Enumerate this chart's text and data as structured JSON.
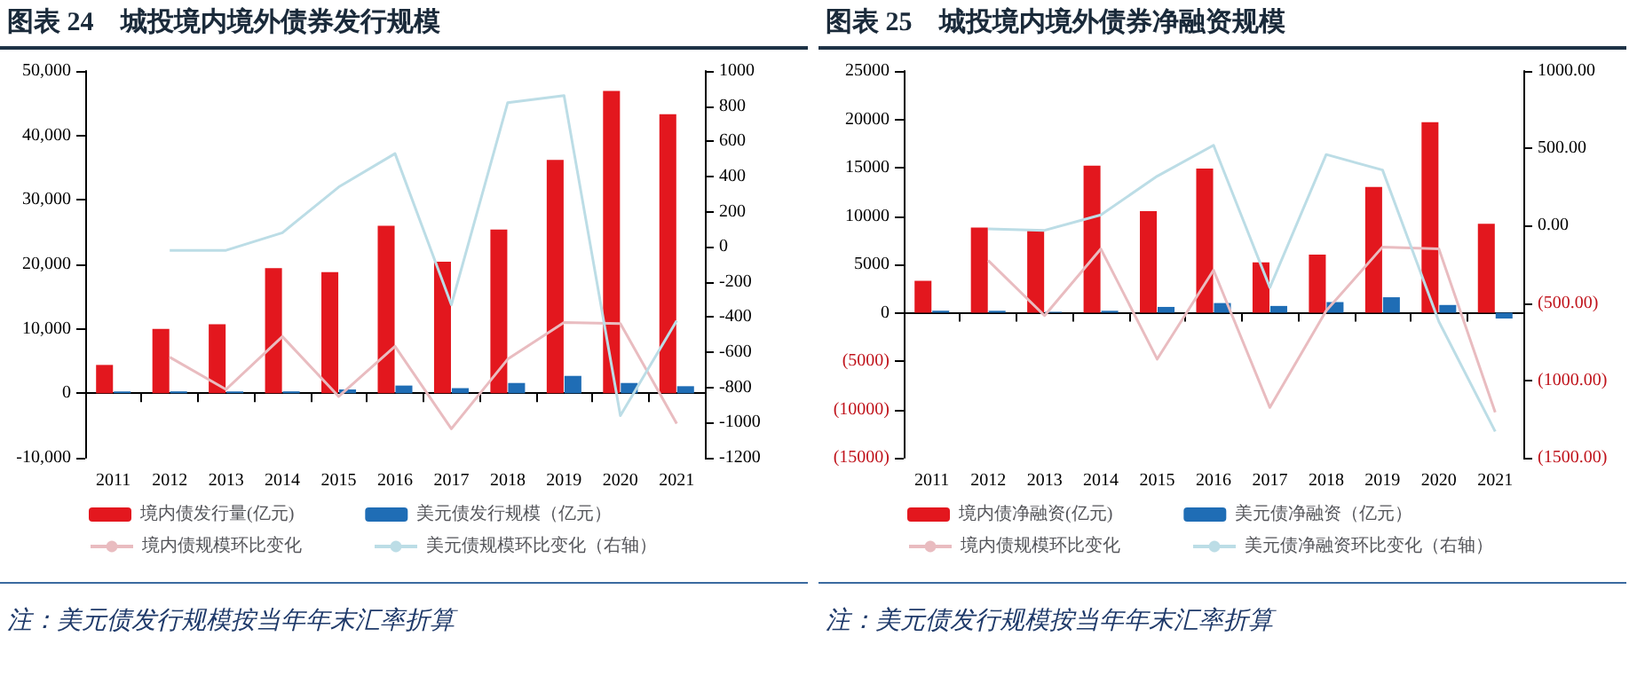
{
  "chart_data": [
    {
      "type": "bar",
      "title": "图表 24　城投境内境外债券发行规模",
      "categories": [
        "2011",
        "2012",
        "2013",
        "2014",
        "2015",
        "2016",
        "2017",
        "2018",
        "2019",
        "2020",
        "2021"
      ],
      "series": [
        {
          "name": "境内债发行量(亿元)",
          "color": "#e3171e",
          "values": [
            4400,
            10000,
            10700,
            19400,
            18800,
            26000,
            20400,
            25400,
            36200,
            46900,
            43300
          ]
        },
        {
          "name": "美元债发行规模（亿元）",
          "color": "#1f6db5",
          "values": [
            300,
            300,
            300,
            300,
            600,
            1200,
            800,
            1600,
            2700,
            1600,
            1100
          ]
        },
        {
          "name": "境内债规模环比变化",
          "type": "line",
          "color": "#e9bcc0",
          "values": [
            null,
            5600,
            600,
            8800,
            -500,
            7300,
            -5500,
            5300,
            11000,
            10800,
            -4700
          ]
        },
        {
          "name": "美元债规模环比变化（右轴）",
          "type": "line",
          "axis": "y2",
          "color": "#bcdde6",
          "values": [
            null,
            -20,
            -20,
            80,
            340,
            530,
            -330,
            820,
            860,
            -960,
            -420
          ]
        }
      ],
      "ylim": [
        -10000,
        50000
      ],
      "yticks": [
        {
          "value": -10000,
          "label": "-10,000"
        },
        0,
        {
          "value": 10000,
          "label": "10,000"
        },
        {
          "value": 20000,
          "label": "20,000"
        },
        {
          "value": 30000,
          "label": "30,000"
        },
        {
          "value": 40000,
          "label": "40,000"
        },
        {
          "value": 50000,
          "label": "50,000"
        }
      ],
      "y2lim": [
        -1200,
        1000
      ],
      "y2ticks": [
        -1200,
        -1000,
        -800,
        -600,
        -400,
        -200,
        0,
        200,
        400,
        600,
        800,
        1000
      ],
      "legend": "bottom",
      "marker": "none",
      "line_style": "solid",
      "annotations": [
        "注：美元债发行规模按当年年末汇率折算"
      ]
    },
    {
      "type": "bar",
      "title": "图表 25　城投境内境外债券净融资规模",
      "categories": [
        "2011",
        "2012",
        "2013",
        "2014",
        "2015",
        "2016",
        "2017",
        "2018",
        "2019",
        "2020",
        "2021"
      ],
      "series": [
        {
          "name": "境内债净融资(亿元)",
          "color": "#e3171e",
          "values": [
            3300,
            8800,
            8500,
            15200,
            10500,
            14900,
            5200,
            6000,
            13000,
            19700,
            9200
          ]
        },
        {
          "name": "美元债净融资（亿元）",
          "color": "#1f6db5",
          "values": [
            200,
            200,
            100,
            200,
            600,
            1000,
            700,
            1100,
            1600,
            800,
            -600
          ]
        },
        {
          "name": "境内债规模环比变化",
          "type": "line",
          "color": "#e9bcc0",
          "values": [
            null,
            5400,
            -300,
            6600,
            -4800,
            4400,
            -9800,
            200,
            6800,
            6600,
            -10300
          ]
        },
        {
          "name": "美元债净融资环比变化（右轴）",
          "type": "line",
          "axis": "y2",
          "color": "#bcdde6",
          "values": [
            null,
            -20,
            -30,
            70,
            320,
            520,
            -400,
            460,
            360,
            -620,
            -1330
          ]
        }
      ],
      "ylim": [
        -15000,
        25000
      ],
      "yticks": [
        {
          "value": -15000,
          "label": "(15000)"
        },
        {
          "value": -10000,
          "label": "(10000)"
        },
        {
          "value": -5000,
          "label": "(5000)"
        },
        0,
        5000,
        10000,
        15000,
        20000,
        25000
      ],
      "y2lim": [
        -1500,
        1000
      ],
      "y2ticks": [
        {
          "value": -1500,
          "label": "(1500.00)"
        },
        {
          "value": -1000,
          "label": "(1000.00)"
        },
        {
          "value": -500,
          "label": "(500.00)"
        },
        {
          "value": 0,
          "label": "0.00"
        },
        {
          "value": 500,
          "label": "500.00"
        },
        {
          "value": 1000,
          "label": "1000.00"
        }
      ],
      "legend": "bottom",
      "marker": "none",
      "line_style": "solid",
      "annotations": [
        "注：美元债发行规模按当年年末汇率折算"
      ]
    }
  ]
}
